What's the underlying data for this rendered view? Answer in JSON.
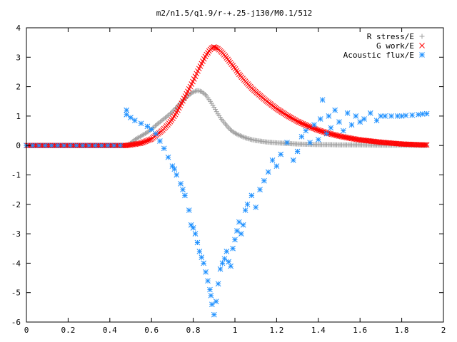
{
  "chart_data": {
    "type": "scatter",
    "title": "m2/n1.5/q1.9/r-+.25-j130/M0.1/512",
    "xlabel": "",
    "ylabel": "",
    "xlim": [
      0,
      2
    ],
    "ylim": [
      -6,
      4
    ],
    "xticks": [
      0,
      0.2,
      0.4,
      0.6,
      0.8,
      1,
      1.2,
      1.4,
      1.6,
      1.8,
      2
    ],
    "xtick_labels": [
      "0",
      "0.2",
      "0.4",
      "0.6",
      "0.8",
      "1",
      "1.2",
      "1.4",
      "1.6",
      "1.8",
      "2"
    ],
    "yticks": [
      -6,
      -5,
      -4,
      -3,
      -2,
      -1,
      0,
      1,
      2,
      3,
      4
    ],
    "ytick_labels": [
      "-6",
      "-5",
      "-4",
      "-3",
      "-2",
      "-1",
      "0",
      "1",
      "2",
      "3",
      "4"
    ],
    "grid": false,
    "legend_position": "top-right",
    "series": [
      {
        "name": "R stress/E",
        "marker": "plus",
        "color": "#a0a0a0",
        "x": [
          0.0,
          0.1,
          0.2,
          0.3,
          0.4,
          0.48,
          0.5,
          0.52,
          0.55,
          0.58,
          0.6,
          0.62,
          0.65,
          0.68,
          0.7,
          0.72,
          0.75,
          0.78,
          0.8,
          0.82,
          0.84,
          0.86,
          0.88,
          0.9,
          0.92,
          0.94,
          0.96,
          0.98,
          1.0,
          1.02,
          1.05,
          1.08,
          1.1,
          1.15,
          1.2,
          1.25,
          1.3,
          1.35,
          1.4,
          1.45,
          1.5,
          1.6,
          1.7,
          1.8,
          1.9,
          1.92
        ],
        "y": [
          0.0,
          0.0,
          0.0,
          0.0,
          0.0,
          0.0,
          0.08,
          0.2,
          0.32,
          0.45,
          0.55,
          0.68,
          0.85,
          1.02,
          1.15,
          1.3,
          1.52,
          1.72,
          1.82,
          1.87,
          1.83,
          1.72,
          1.52,
          1.3,
          1.05,
          0.85,
          0.68,
          0.52,
          0.42,
          0.35,
          0.26,
          0.2,
          0.17,
          0.12,
          0.09,
          0.07,
          0.05,
          0.04,
          0.03,
          0.03,
          0.02,
          0.02,
          0.01,
          0.01,
          0.0,
          0.0
        ]
      },
      {
        "name": "G work/E",
        "marker": "cross",
        "color": "#ff0000",
        "x": [
          0.0,
          0.1,
          0.2,
          0.3,
          0.4,
          0.48,
          0.5,
          0.55,
          0.6,
          0.62,
          0.65,
          0.68,
          0.7,
          0.72,
          0.74,
          0.76,
          0.78,
          0.8,
          0.82,
          0.84,
          0.86,
          0.88,
          0.89,
          0.9,
          0.91,
          0.92,
          0.94,
          0.96,
          0.98,
          1.0,
          1.02,
          1.05,
          1.08,
          1.1,
          1.15,
          1.2,
          1.25,
          1.3,
          1.35,
          1.4,
          1.45,
          1.5,
          1.55,
          1.6,
          1.7,
          1.8,
          1.9,
          1.92
        ],
        "y": [
          0.0,
          0.0,
          0.0,
          0.0,
          0.0,
          0.0,
          0.02,
          0.08,
          0.22,
          0.34,
          0.5,
          0.72,
          0.9,
          1.12,
          1.38,
          1.65,
          1.92,
          2.2,
          2.5,
          2.78,
          3.05,
          3.25,
          3.32,
          3.35,
          3.32,
          3.28,
          3.15,
          2.98,
          2.8,
          2.62,
          2.42,
          2.18,
          1.95,
          1.82,
          1.52,
          1.25,
          1.02,
          0.82,
          0.66,
          0.52,
          0.41,
          0.32,
          0.25,
          0.19,
          0.11,
          0.05,
          0.02,
          0.02
        ]
      },
      {
        "name": "Acoustic flux/E",
        "marker": "star",
        "color": "#1e90ff",
        "x": [
          0.0,
          0.03,
          0.06,
          0.09,
          0.12,
          0.15,
          0.18,
          0.21,
          0.24,
          0.27,
          0.3,
          0.33,
          0.36,
          0.39,
          0.42,
          0.45,
          0.48,
          0.48,
          0.5,
          0.52,
          0.55,
          0.58,
          0.6,
          0.62,
          0.64,
          0.66,
          0.68,
          0.7,
          0.71,
          0.72,
          0.74,
          0.75,
          0.76,
          0.78,
          0.79,
          0.8,
          0.81,
          0.82,
          0.83,
          0.84,
          0.85,
          0.86,
          0.87,
          0.88,
          0.885,
          0.89,
          0.9,
          0.91,
          0.92,
          0.93,
          0.94,
          0.95,
          0.96,
          0.97,
          0.98,
          0.99,
          1.0,
          1.01,
          1.02,
          1.03,
          1.04,
          1.05,
          1.06,
          1.08,
          1.1,
          1.12,
          1.14,
          1.16,
          1.18,
          1.2,
          1.22,
          1.25,
          1.28,
          1.3,
          1.32,
          1.34,
          1.36,
          1.38,
          1.4,
          1.41,
          1.42,
          1.44,
          1.45,
          1.46,
          1.48,
          1.5,
          1.52,
          1.54,
          1.56,
          1.58,
          1.6,
          1.62,
          1.65,
          1.68,
          1.7,
          1.72,
          1.75,
          1.78,
          1.8,
          1.82,
          1.85,
          1.88,
          1.9,
          1.92
        ],
        "y": [
          0.0,
          0.0,
          0.0,
          0.0,
          0.0,
          0.0,
          0.0,
          0.0,
          0.0,
          0.0,
          0.0,
          0.0,
          0.0,
          0.0,
          0.0,
          0.0,
          1.2,
          1.05,
          0.95,
          0.85,
          0.75,
          0.65,
          0.55,
          0.4,
          0.15,
          -0.1,
          -0.4,
          -0.7,
          -0.8,
          -1.0,
          -1.3,
          -1.5,
          -1.7,
          -2.2,
          -2.7,
          -2.8,
          -3.0,
          -3.3,
          -3.6,
          -3.8,
          -4.0,
          -4.3,
          -4.6,
          -4.9,
          -5.1,
          -5.4,
          -5.75,
          -5.3,
          -4.7,
          -4.2,
          -4.0,
          -3.85,
          -3.6,
          -3.95,
          -4.1,
          -3.5,
          -3.2,
          -2.9,
          -2.6,
          -3.0,
          -2.7,
          -2.2,
          -2.0,
          -1.7,
          -2.1,
          -1.5,
          -1.2,
          -0.9,
          -0.5,
          -0.7,
          -0.3,
          0.1,
          -0.5,
          -0.2,
          0.3,
          0.5,
          0.1,
          0.7,
          0.2,
          0.9,
          1.55,
          0.4,
          1.0,
          0.6,
          1.2,
          0.8,
          0.5,
          1.1,
          0.7,
          1.0,
          0.8,
          0.9,
          1.1,
          0.85,
          1.0,
          1.0,
          1.0,
          1.0,
          1.0,
          1.02,
          1.03,
          1.05,
          1.07,
          1.08
        ]
      }
    ]
  }
}
